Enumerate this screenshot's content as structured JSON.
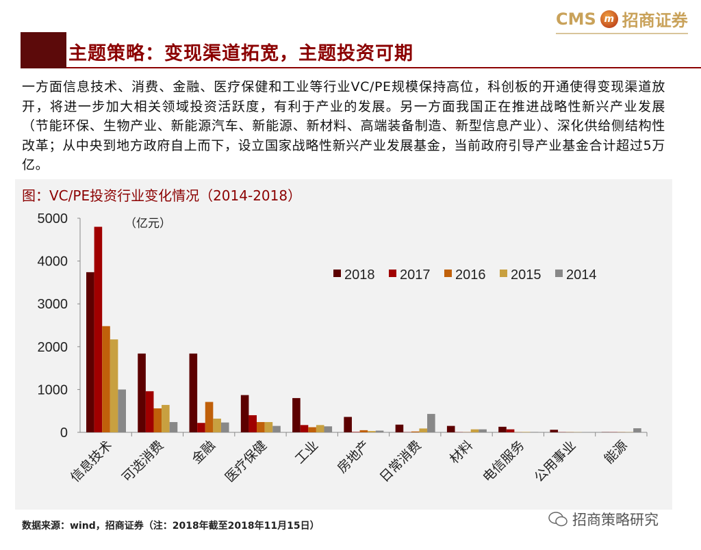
{
  "header": {
    "logo_text": "CMS",
    "logo_mark": "m",
    "logo_cn": "招商证券",
    "title": "主题策略：变现渠道拓宽，主题投资可期"
  },
  "body_text": "一方面信息技术、消费、金融、医疗保健和工业等行业VC/PE规模保持高位，科创板的开通使得变现渠道放开，将进一步加大相关领域投资活跃度，有利于产业的发展。另一方面我国正在推进战略性新兴产业发展（节能环保、生物产业、新能源汽车、新能源、新材料、高端装备制造、新型信息产业）、深化供给侧结构性改革；从中央到地方政府自上而下，设立国家战略性新兴产业发展基金，当前政府引导产业基金合计超过5万亿。",
  "footer": {
    "source": "数据来源：wind，招商证券（注：2018年截至2018年11月15日）",
    "watermark": "招商策略研究"
  },
  "chart_data": {
    "type": "bar",
    "title": "图：VC/PE投资行业变化情况（2014-2018）",
    "unit_label": "（亿元）",
    "ylim": [
      0,
      5000
    ],
    "yticks": [
      "0",
      "1000",
      "2000",
      "3000",
      "4000",
      "5000"
    ],
    "legend_position": "top-right",
    "categories": [
      "信息技术",
      "可选消费",
      "金融",
      "医疗保健",
      "工业",
      "房地产",
      "日常消费",
      "材料",
      "电信服务",
      "公用事业",
      "能源"
    ],
    "series": [
      {
        "name": "2018",
        "color": "#5c0000",
        "values": [
          3740,
          1840,
          1840,
          870,
          800,
          360,
          180,
          150,
          130,
          60,
          5
        ]
      },
      {
        "name": "2017",
        "color": "#a00000",
        "values": [
          4800,
          960,
          220,
          400,
          170,
          10,
          5,
          5,
          70,
          5,
          5
        ]
      },
      {
        "name": "2016",
        "color": "#c0600a",
        "values": [
          2480,
          560,
          710,
          240,
          120,
          50,
          20,
          5,
          5,
          5,
          5
        ]
      },
      {
        "name": "2015",
        "color": "#c8a040",
        "values": [
          2170,
          640,
          320,
          240,
          170,
          30,
          90,
          70,
          10,
          5,
          5
        ]
      },
      {
        "name": "2014",
        "color": "#888888",
        "values": [
          1000,
          240,
          230,
          150,
          140,
          40,
          430,
          70,
          10,
          5,
          95
        ]
      }
    ]
  }
}
